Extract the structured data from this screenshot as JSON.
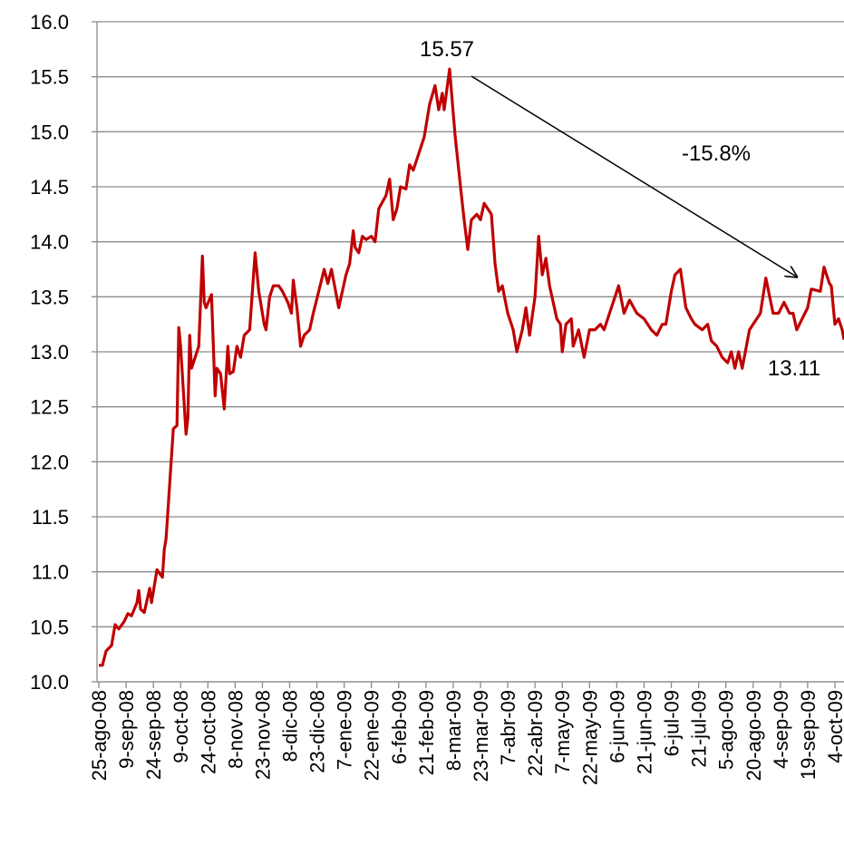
{
  "chart_data": {
    "type": "line",
    "x": [
      "2008-08-25",
      "2008-08-27",
      "2008-08-29",
      "2008-09-01",
      "2008-09-03",
      "2008-09-05",
      "2008-09-08",
      "2008-09-10",
      "2008-09-12",
      "2008-09-15",
      "2008-09-16",
      "2008-09-17",
      "2008-09-19",
      "2008-09-22",
      "2008-09-23",
      "2008-09-25",
      "2008-09-26",
      "2008-09-29",
      "2008-09-30",
      "2008-10-01",
      "2008-10-03",
      "2008-10-05",
      "2008-10-07",
      "2008-10-08",
      "2008-10-09",
      "2008-10-12",
      "2008-10-13",
      "2008-10-14",
      "2008-10-15",
      "2008-10-17",
      "2008-10-19",
      "2008-10-21",
      "2008-10-22",
      "2008-10-23",
      "2008-10-26",
      "2008-10-28",
      "2008-10-29",
      "2008-10-31",
      "2008-11-02",
      "2008-11-04",
      "2008-11-05",
      "2008-11-07",
      "2008-11-09",
      "2008-11-11",
      "2008-11-13",
      "2008-11-16",
      "2008-11-19",
      "2008-11-21",
      "2008-11-24",
      "2008-11-25",
      "2008-11-27",
      "2008-11-29",
      "2008-12-02",
      "2008-12-04",
      "2008-12-07",
      "2008-12-09",
      "2008-12-10",
      "2008-12-12",
      "2008-12-14",
      "2008-12-16",
      "2008-12-19",
      "2008-12-21",
      "2008-12-24",
      "2008-12-27",
      "2008-12-29",
      "2008-12-31",
      "2009-01-04",
      "2009-01-08",
      "2009-01-10",
      "2009-01-12",
      "2009-01-13",
      "2009-01-15",
      "2009-01-17",
      "2009-01-19",
      "2009-01-22",
      "2009-01-24",
      "2009-01-26",
      "2009-01-30",
      "2009-02-01",
      "2009-02-03",
      "2009-02-05",
      "2009-02-07",
      "2009-02-10",
      "2009-02-12",
      "2009-02-14",
      "2009-02-18",
      "2009-02-20",
      "2009-02-23",
      "2009-02-26",
      "2009-02-28",
      "2009-03-02",
      "2009-03-03",
      "2009-03-06",
      "2009-03-09",
      "2009-03-12",
      "2009-03-14",
      "2009-03-16",
      "2009-03-18",
      "2009-03-21",
      "2009-03-23",
      "2009-03-25",
      "2009-03-27",
      "2009-03-29",
      "2009-03-31",
      "2009-04-02",
      "2009-04-04",
      "2009-04-07",
      "2009-04-10",
      "2009-04-12",
      "2009-04-15",
      "2009-04-17",
      "2009-04-19",
      "2009-04-22",
      "2009-04-24",
      "2009-04-26",
      "2009-04-28",
      "2009-04-30",
      "2009-05-04",
      "2009-05-06",
      "2009-05-07",
      "2009-05-09",
      "2009-05-12",
      "2009-05-13",
      "2009-05-16",
      "2009-05-19",
      "2009-05-22",
      "2009-05-25",
      "2009-05-28",
      "2009-05-30",
      "2009-06-02",
      "2009-06-05",
      "2009-06-07",
      "2009-06-10",
      "2009-06-13",
      "2009-06-17",
      "2009-06-21",
      "2009-06-25",
      "2009-06-28",
      "2009-07-01",
      "2009-07-03",
      "2009-07-06",
      "2009-07-08",
      "2009-07-11",
      "2009-07-14",
      "2009-07-17",
      "2009-07-19",
      "2009-07-23",
      "2009-07-26",
      "2009-07-28",
      "2009-07-31",
      "2009-08-03",
      "2009-08-06",
      "2009-08-08",
      "2009-08-10",
      "2009-08-12",
      "2009-08-14",
      "2009-08-18",
      "2009-08-24",
      "2009-08-27",
      "2009-08-31",
      "2009-09-03",
      "2009-09-06",
      "2009-09-09",
      "2009-09-11",
      "2009-09-13",
      "2009-09-16",
      "2009-09-19",
      "2009-09-21",
      "2009-09-26",
      "2009-09-28",
      "2009-10-01",
      "2009-10-02",
      "2009-10-04",
      "2009-10-06",
      "2009-10-08",
      "2009-10-09"
    ],
    "series": [
      {
        "color": "#c00000",
        "values": [
          10.15,
          10.15,
          10.28,
          10.33,
          10.52,
          10.48,
          10.55,
          10.62,
          10.6,
          10.72,
          10.83,
          10.66,
          10.63,
          10.85,
          10.72,
          10.92,
          11.02,
          10.95,
          11.2,
          11.3,
          11.8,
          12.3,
          12.33,
          13.22,
          13.05,
          12.25,
          12.4,
          13.15,
          12.85,
          12.95,
          13.05,
          13.87,
          13.45,
          13.4,
          13.52,
          12.6,
          12.85,
          12.8,
          12.48,
          13.05,
          12.8,
          12.82,
          13.05,
          12.95,
          13.15,
          13.2,
          13.9,
          13.55,
          13.25,
          13.2,
          13.5,
          13.6,
          13.6,
          13.55,
          13.45,
          13.35,
          13.65,
          13.4,
          13.05,
          13.15,
          13.2,
          13.35,
          13.55,
          13.75,
          13.62,
          13.75,
          13.4,
          13.7,
          13.8,
          14.1,
          13.95,
          13.9,
          14.05,
          14.02,
          14.05,
          14.0,
          14.3,
          14.42,
          14.57,
          14.2,
          14.3,
          14.5,
          14.48,
          14.7,
          14.65,
          14.85,
          14.95,
          15.25,
          15.42,
          15.2,
          15.35,
          15.2,
          15.57,
          14.97,
          14.5,
          14.2,
          13.93,
          14.2,
          14.25,
          14.2,
          14.35,
          14.3,
          14.25,
          13.8,
          13.55,
          13.6,
          13.35,
          13.2,
          13.0,
          13.2,
          13.4,
          13.15,
          13.5,
          14.05,
          13.7,
          13.85,
          13.6,
          13.3,
          13.25,
          13.0,
          13.25,
          13.3,
          13.05,
          13.2,
          12.95,
          13.2,
          13.2,
          13.25,
          13.2,
          13.35,
          13.5,
          13.6,
          13.35,
          13.47,
          13.35,
          13.3,
          13.2,
          13.15,
          13.25,
          13.25,
          13.55,
          13.7,
          13.75,
          13.4,
          13.3,
          13.25,
          13.2,
          13.25,
          13.1,
          13.05,
          12.95,
          12.9,
          13.0,
          12.85,
          13.0,
          12.85,
          13.2,
          13.35,
          13.67,
          13.35,
          13.35,
          13.45,
          13.35,
          13.35,
          13.2,
          13.3,
          13.4,
          13.57,
          13.55,
          13.77,
          13.62,
          13.6,
          13.25,
          13.3,
          13.2,
          13.11
        ]
      }
    ],
    "xlim": [
      "2008-08-24",
      "2009-10-09"
    ],
    "xticks": [
      {
        "value": "2008-08-25",
        "label": "25-ago-08"
      },
      {
        "value": "2008-09-09",
        "label": "9-sep-08"
      },
      {
        "value": "2008-09-24",
        "label": "24-sep-08"
      },
      {
        "value": "2008-10-09",
        "label": "9-oct-08"
      },
      {
        "value": "2008-10-24",
        "label": "24-oct-08"
      },
      {
        "value": "2008-11-08",
        "label": "8-nov-08"
      },
      {
        "value": "2008-11-23",
        "label": "23-nov-08"
      },
      {
        "value": "2008-12-08",
        "label": "8-dic-08"
      },
      {
        "value": "2008-12-23",
        "label": "23-dic-08"
      },
      {
        "value": "2009-01-07",
        "label": "7-ene-09"
      },
      {
        "value": "2009-01-22",
        "label": "22-ene-09"
      },
      {
        "value": "2009-02-06",
        "label": "6-feb-09"
      },
      {
        "value": "2009-02-21",
        "label": "21-feb-09"
      },
      {
        "value": "2009-03-08",
        "label": "8-mar-09"
      },
      {
        "value": "2009-03-23",
        "label": "23-mar-09"
      },
      {
        "value": "2009-04-07",
        "label": "7-abr-09"
      },
      {
        "value": "2009-04-22",
        "label": "22-abr-09"
      },
      {
        "value": "2009-05-07",
        "label": "7-may-09"
      },
      {
        "value": "2009-05-22",
        "label": "22-may-09"
      },
      {
        "value": "2009-06-06",
        "label": "6-jun-09"
      },
      {
        "value": "2009-06-21",
        "label": "21-jun-09"
      },
      {
        "value": "2009-07-06",
        "label": "6-jul-09"
      },
      {
        "value": "2009-07-21",
        "label": "21-jul-09"
      },
      {
        "value": "2009-08-05",
        "label": "5-ago-09"
      },
      {
        "value": "2009-08-20",
        "label": "20-ago-09"
      },
      {
        "value": "2009-09-04",
        "label": "4-sep-09"
      },
      {
        "value": "2009-09-19",
        "label": "19-sep-09"
      },
      {
        "value": "2009-10-04",
        "label": "4-oct-09"
      }
    ],
    "ylim": [
      10,
      16
    ],
    "yticks": [
      {
        "value": 10,
        "label": "10.0"
      },
      10.5,
      {
        "value": 11,
        "label": "11.0"
      },
      11.5,
      {
        "value": 12,
        "label": "12.0"
      },
      12.5,
      {
        "value": 13,
        "label": "13.0"
      },
      13.5,
      {
        "value": 14,
        "label": "14.0"
      },
      14.5,
      {
        "value": 15,
        "label": "15.0"
      },
      15.5,
      {
        "value": 16,
        "label": "16.0"
      }
    ],
    "grid": true,
    "annotations": [
      {
        "text": "15.57"
      },
      {
        "text": "-15.8%",
        "color": "#ff0000"
      },
      {
        "text": "13.11"
      }
    ]
  }
}
